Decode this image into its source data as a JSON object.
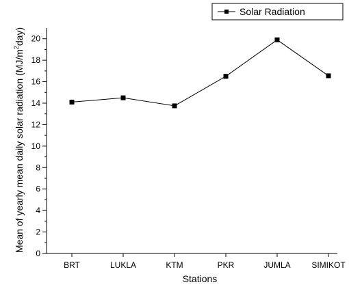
{
  "chart_data": {
    "type": "line",
    "categories": [
      "BRT",
      "LUKLA",
      "KTM",
      "PKR",
      "JUMLA",
      "SIMIKOT"
    ],
    "series": [
      {
        "name": "Solar Radiation",
        "values": [
          14.1,
          14.5,
          13.75,
          16.5,
          19.9,
          16.55
        ],
        "color": "#000000",
        "marker": "square"
      }
    ],
    "xlabel": "Stations",
    "ylabel_main": "Mean of yearly mean daily solar radiation (MJ/m",
    "ylabel_sup": "2",
    "ylabel_tail": "day)",
    "ylim": [
      0,
      21
    ],
    "yticks": [
      "0",
      "2",
      "4",
      "6",
      "8",
      "10",
      "12",
      "14",
      "16",
      "18",
      "20"
    ],
    "legend": {
      "position": "top-right",
      "label": "Solar Radiation"
    },
    "grid": false
  }
}
